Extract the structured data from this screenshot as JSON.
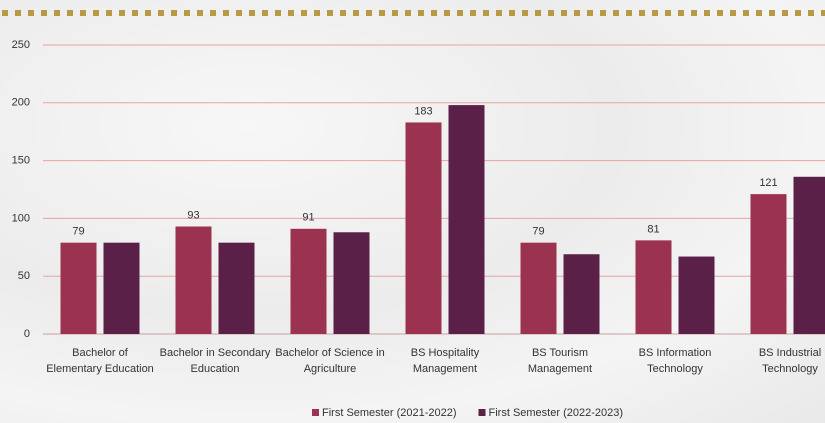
{
  "chart_data": {
    "type": "bar",
    "categories": [
      "Bachelor of Elementary Education",
      "Bachelor in Secondary Education",
      "Bachelor of Science in Agriculture",
      "BS Hospitality Management",
      "BS Tourism Management",
      "BS Information Technology",
      "BS Industrial Technology"
    ],
    "series": [
      {
        "name": "First Semester (2021-2022)",
        "color": "#9b3350",
        "values": [
          79,
          93,
          91,
          183,
          79,
          81,
          121
        ],
        "show_labels": true
      },
      {
        "name": "First Semester (2022-2023)",
        "color": "#5a2048",
        "values": [
          79,
          79,
          88,
          198,
          69,
          67,
          136
        ],
        "show_labels": false
      }
    ],
    "ylim": [
      0,
      250
    ],
    "yticks": [
      0,
      50,
      100,
      150,
      200,
      250
    ],
    "grid": true,
    "legend": "bottom"
  }
}
